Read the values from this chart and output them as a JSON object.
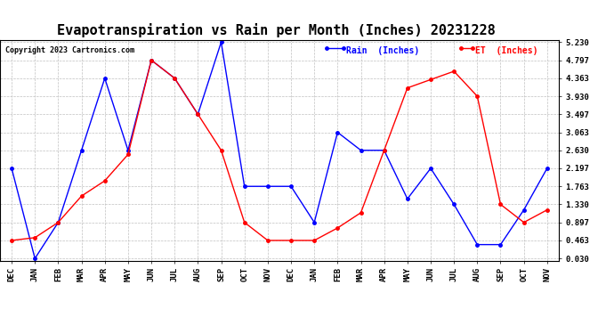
{
  "title": "Evapotranspiration vs Rain per Month (Inches) 20231228",
  "copyright": "Copyright 2023 Cartronics.com",
  "x_labels": [
    "DEC",
    "JAN",
    "FEB",
    "MAR",
    "APR",
    "MAY",
    "JUN",
    "JUL",
    "AUG",
    "SEP",
    "OCT",
    "NOV",
    "DEC",
    "JAN",
    "FEB",
    "MAR",
    "APR",
    "MAY",
    "JUN",
    "JUL",
    "AUG",
    "SEP",
    "OCT",
    "NOV"
  ],
  "rain_inches": [
    2.197,
    0.03,
    0.897,
    2.63,
    4.363,
    2.63,
    4.797,
    4.363,
    3.497,
    5.23,
    1.763,
    1.763,
    1.763,
    0.897,
    3.063,
    2.63,
    2.63,
    1.463,
    2.197,
    1.33,
    0.363,
    0.363,
    1.197,
    2.197
  ],
  "et_inches": [
    0.463,
    0.53,
    0.897,
    1.53,
    1.897,
    2.53,
    4.797,
    4.363,
    3.497,
    2.63,
    0.897,
    0.463,
    0.463,
    0.463,
    0.763,
    1.13,
    2.63,
    4.13,
    4.33,
    4.53,
    3.93,
    1.33,
    0.897,
    1.197
  ],
  "rain_color": "#0000ff",
  "et_color": "#ff0000",
  "background_color": "#ffffff",
  "grid_color": "#c0c0c0",
  "y_ticks": [
    0.03,
    0.463,
    0.897,
    1.33,
    1.763,
    2.197,
    2.63,
    3.063,
    3.497,
    3.93,
    4.363,
    4.797,
    5.23
  ],
  "ylim_min": 0.03,
  "ylim_max": 5.23,
  "title_fontsize": 11,
  "tick_fontsize": 6.5,
  "legend_rain": "Rain  (Inches)",
  "legend_et": "ET  (Inches)"
}
